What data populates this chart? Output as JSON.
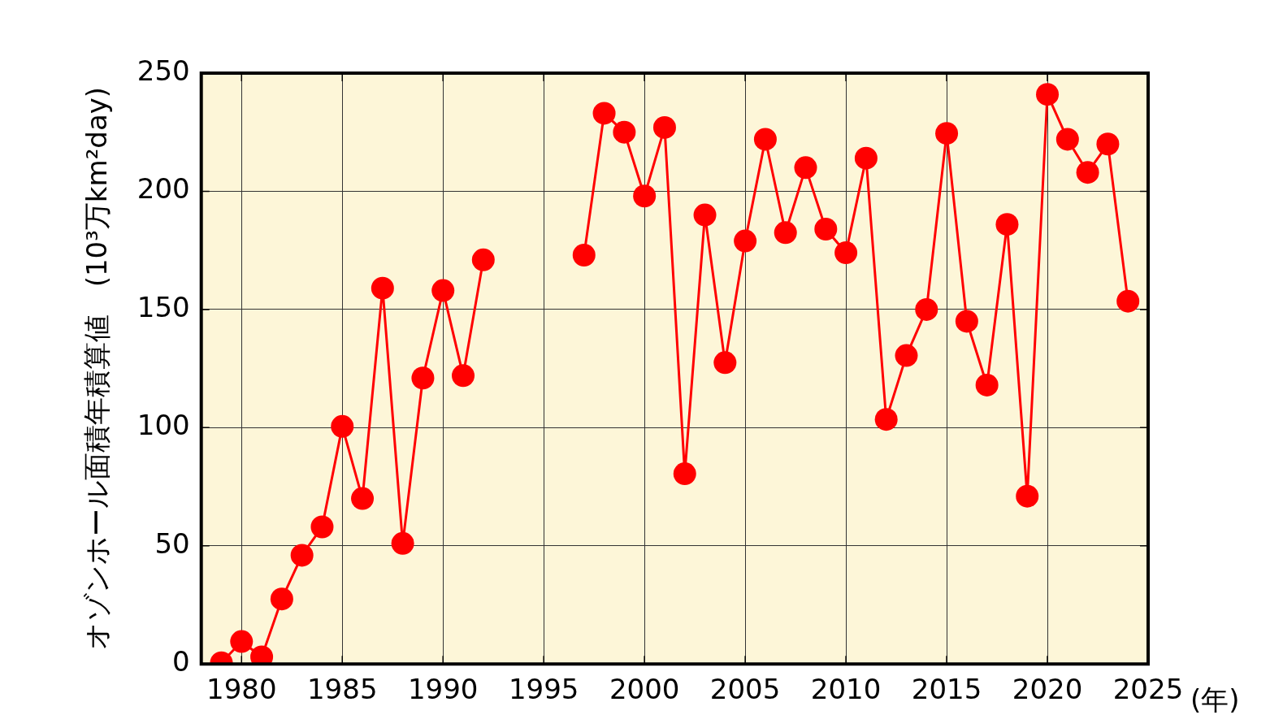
{
  "chart_data": {
    "type": "line",
    "xlabel": "(年)",
    "ylabel": "オゾンホール面積年積算値　(10³万km²day)",
    "x": [
      1979,
      1980,
      1981,
      1982,
      1983,
      1984,
      1985,
      1986,
      1987,
      1988,
      1989,
      1990,
      1991,
      1992,
      1993,
      1994,
      1995,
      1996,
      1997,
      1998,
      1999,
      2000,
      2001,
      2002,
      2003,
      2004,
      2005,
      2006,
      2007,
      2008,
      2009,
      2010,
      2011,
      2012,
      2013,
      2014,
      2015,
      2016,
      2017,
      2018,
      2019,
      2020,
      2021,
      2022,
      2023,
      2024
    ],
    "series": [
      {
        "color": "#ff0000",
        "values": [
          0.5,
          9.5,
          3,
          27.5,
          46,
          58,
          100.5,
          70,
          159,
          51,
          121,
          158,
          122,
          171,
          null,
          null,
          null,
          null,
          173,
          233,
          225,
          198,
          227,
          80.5,
          190,
          127.5,
          179,
          222,
          182.5,
          210,
          184,
          174,
          214,
          103.5,
          130.5,
          150,
          224.5,
          145,
          118,
          186,
          71,
          241,
          222,
          208,
          220,
          153.5
        ]
      }
    ],
    "xlim": [
      1978,
      2025
    ],
    "xticks": [
      1980,
      1985,
      1990,
      1995,
      2000,
      2005,
      2010,
      2015,
      2020,
      2025
    ],
    "ylim": [
      0,
      250
    ],
    "yticks": [
      0,
      50,
      100,
      150,
      200,
      250
    ],
    "grid": true,
    "marker": "circle",
    "line_style": "solid",
    "legend": false
  }
}
